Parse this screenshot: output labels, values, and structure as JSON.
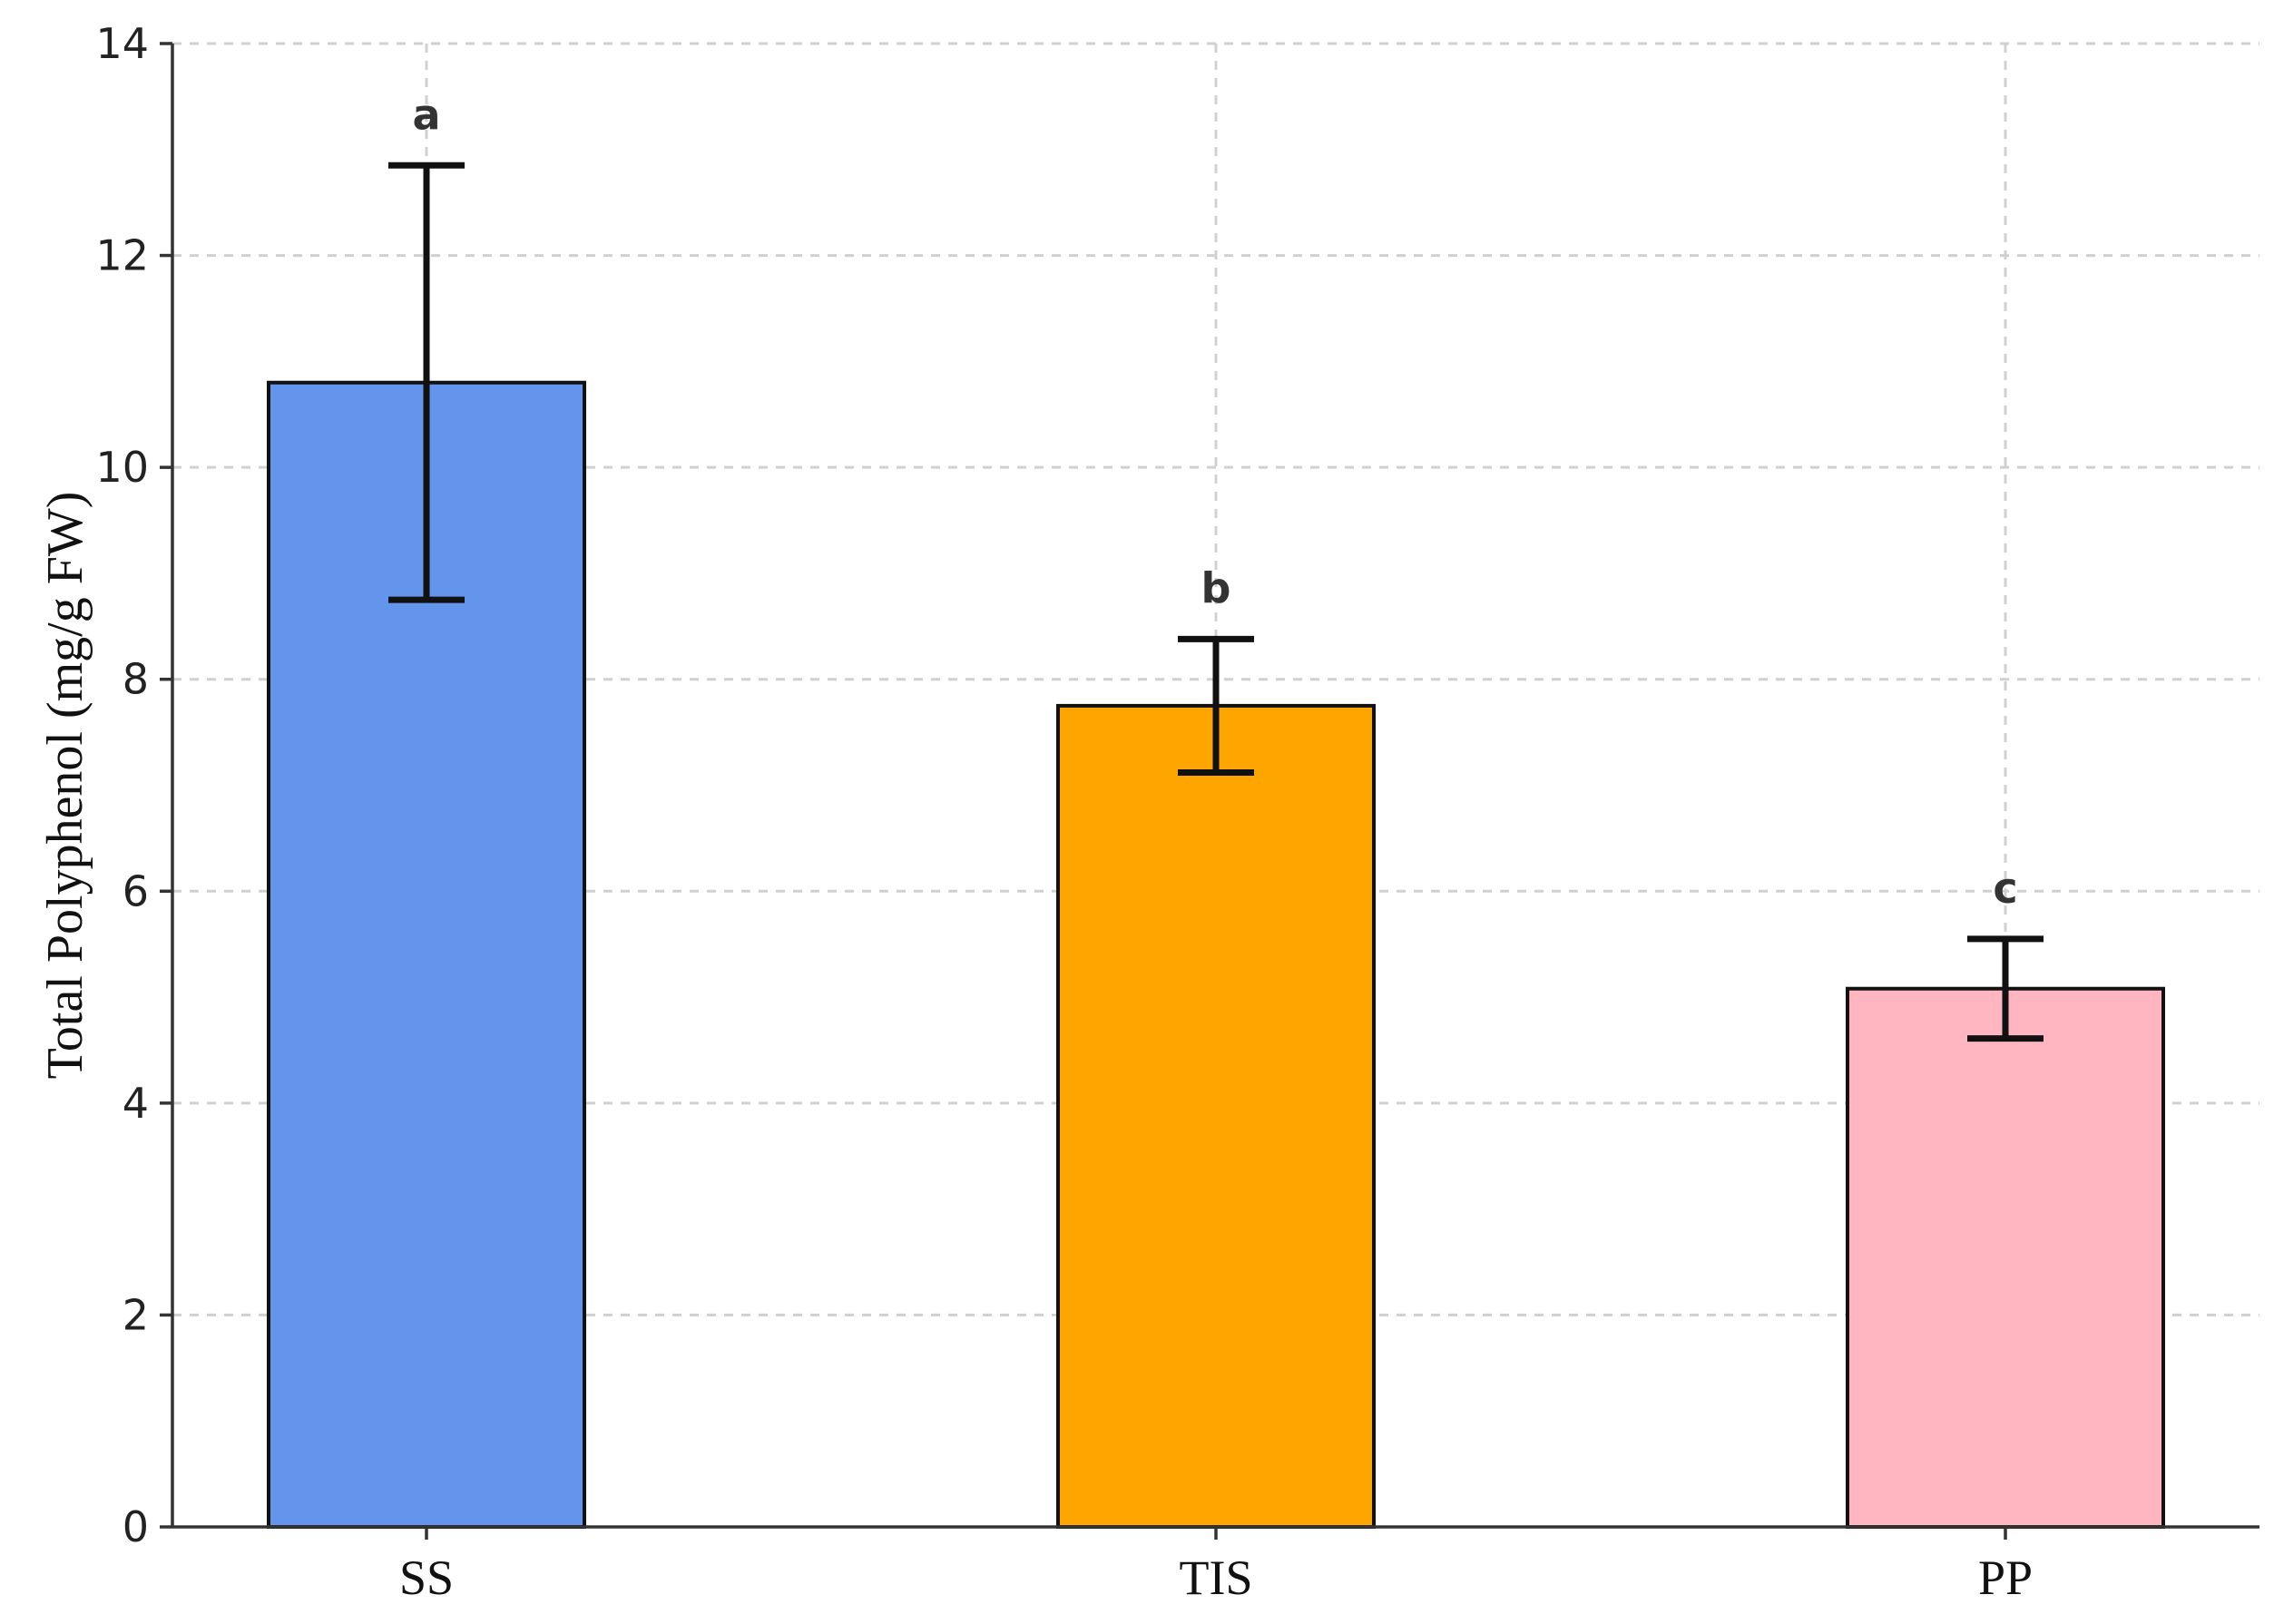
{
  "chart_data": {
    "type": "bar",
    "title": "",
    "xlabel": "",
    "ylabel": "Total Polyphenol (mg/g FW)",
    "ylim": [
      0,
      14
    ],
    "yticks": [
      0,
      2,
      4,
      6,
      8,
      10,
      12,
      14
    ],
    "grid": true,
    "categories": [
      "SS",
      "TIS",
      "PP"
    ],
    "values": [
      10.8,
      7.75,
      5.08
    ],
    "error": [
      2.05,
      0.63,
      0.47
    ],
    "significance_letters": [
      "a",
      "b",
      "c"
    ],
    "colors": [
      "#6495ED",
      "#FFA500",
      "#FFB6C1"
    ]
  }
}
